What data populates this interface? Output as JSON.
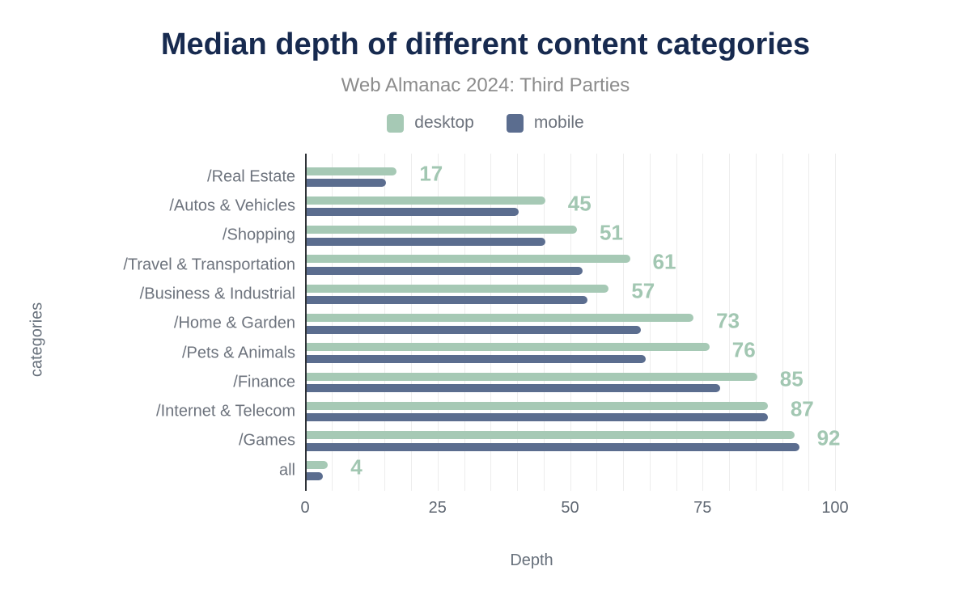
{
  "chart_data": {
    "type": "bar",
    "orientation": "horizontal-grouped",
    "title": "Median depth of different content categories",
    "subtitle": "Web Almanac 2024: Third Parties",
    "xlabel": "Depth",
    "ylabel": "categories",
    "categories": [
      "/Real Estate",
      "/Autos & Vehicles",
      "/Shopping",
      "/Travel & Transportation",
      "/Business & Industrial",
      "/Home & Garden",
      "/Pets & Animals",
      "/Finance",
      "/Internet & Telecom",
      "/Games",
      "all"
    ],
    "series": [
      {
        "name": "desktop",
        "color": "#a6c9b5",
        "values": [
          17,
          45,
          51,
          61,
          57,
          73,
          76,
          85,
          87,
          92,
          4
        ],
        "labels_shown": true
      },
      {
        "name": "mobile",
        "color": "#5b6d8f",
        "values": [
          15,
          40,
          45,
          52,
          53,
          63,
          64,
          78,
          87,
          93,
          3
        ],
        "labels_shown": false
      }
    ],
    "x_ticks": [
      0,
      25,
      50,
      75,
      100
    ],
    "xlim": [
      0,
      100
    ],
    "grid": {
      "show": true,
      "interval": 5,
      "color": "#ededed"
    },
    "legend_position": "top",
    "value_label_color": "#a2c7b2",
    "colors": {
      "title": "#172a4f",
      "subtitle": "#8c8c8c",
      "axis_title": "#67707b",
      "tick_label": "#5f6772",
      "category_label": "#6d737d",
      "axis_line": "#2f3338",
      "background": "#ffffff"
    }
  }
}
